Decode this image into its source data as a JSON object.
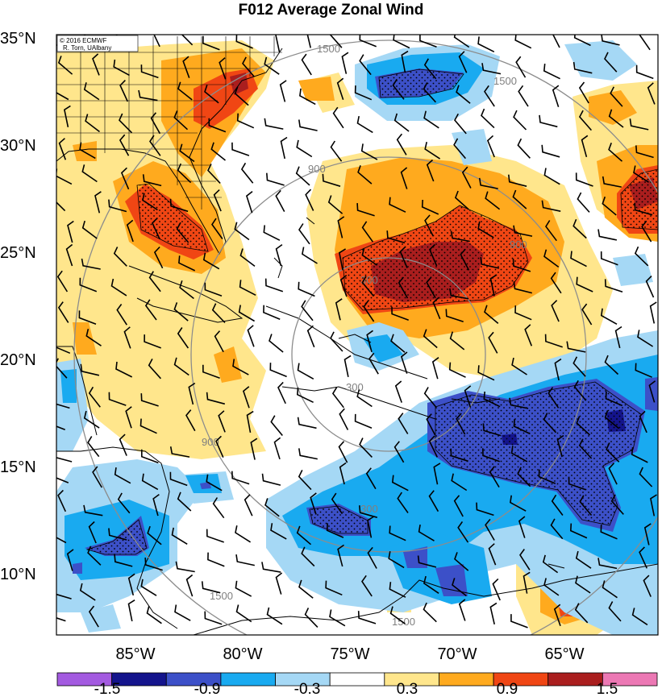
{
  "title": "F012 Average Zonal Wind",
  "credit": [
    "© 2016 ECMWF",
    "R. Torn, UAlbany"
  ],
  "lat_labels": [
    "35°N",
    "30°N",
    "25°N",
    "20°N",
    "15°N",
    "10°N"
  ],
  "lon_labels": [
    "85°W",
    "80°W",
    "75°W",
    "70°W",
    "65°W"
  ],
  "colorbar": {
    "colors": [
      "#a35ae0",
      "#14148c",
      "#3c50c8",
      "#19aaf0",
      "#a5d8f5",
      "#ffffff",
      "#ffe68c",
      "#ffaa1e",
      "#f04614",
      "#aa1e1e",
      "#ec78b4"
    ],
    "labels": [
      "-1.5",
      "-0.9",
      "-0.3",
      "0.3",
      "0.9",
      "1.5"
    ]
  },
  "range_rings": [
    "300",
    "900",
    "1500"
  ],
  "palette": {
    "strong_negative": "#3c50c8",
    "darkest_negative": "#14148c",
    "negative": "#19aaf0",
    "weak_negative": "#a5d8f5",
    "weak_positive": "#ffe68c",
    "positive": "#ffaa1e",
    "strong_positive": "#f04614",
    "darkest_positive": "#aa1e1e",
    "rings": "#8c8c8c"
  }
}
